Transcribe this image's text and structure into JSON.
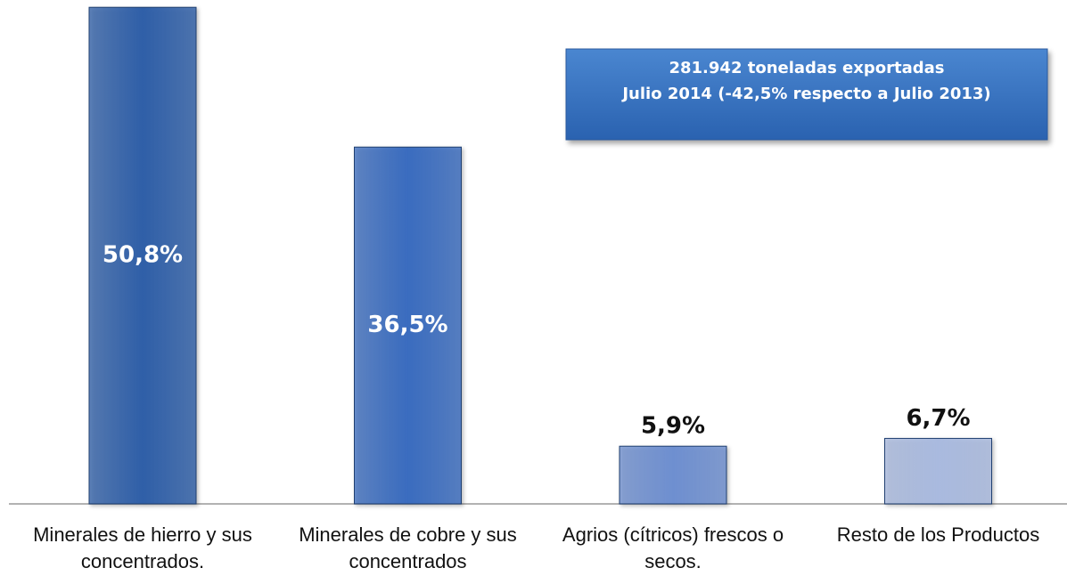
{
  "chart_data": {
    "type": "bar",
    "categories": [
      "Minerales de hierro y sus concentrados.",
      "Minerales de cobre y sus concentrados",
      "Agrios (cítricos) frescos o secos.",
      "Resto de los Productos"
    ],
    "values": [
      50.8,
      36.5,
      5.9,
      6.7
    ],
    "value_labels": [
      "50,8%",
      "36,5%",
      "5,9%",
      "6,7%"
    ],
    "colors": [
      "#2f5fa8",
      "#3a6cbf",
      "#6e8fd0",
      "#a9badf"
    ],
    "annotation": [
      "281.942 toneladas exportadas",
      "Julio 2014  (-42,5% respecto a Julio 2013)"
    ]
  }
}
